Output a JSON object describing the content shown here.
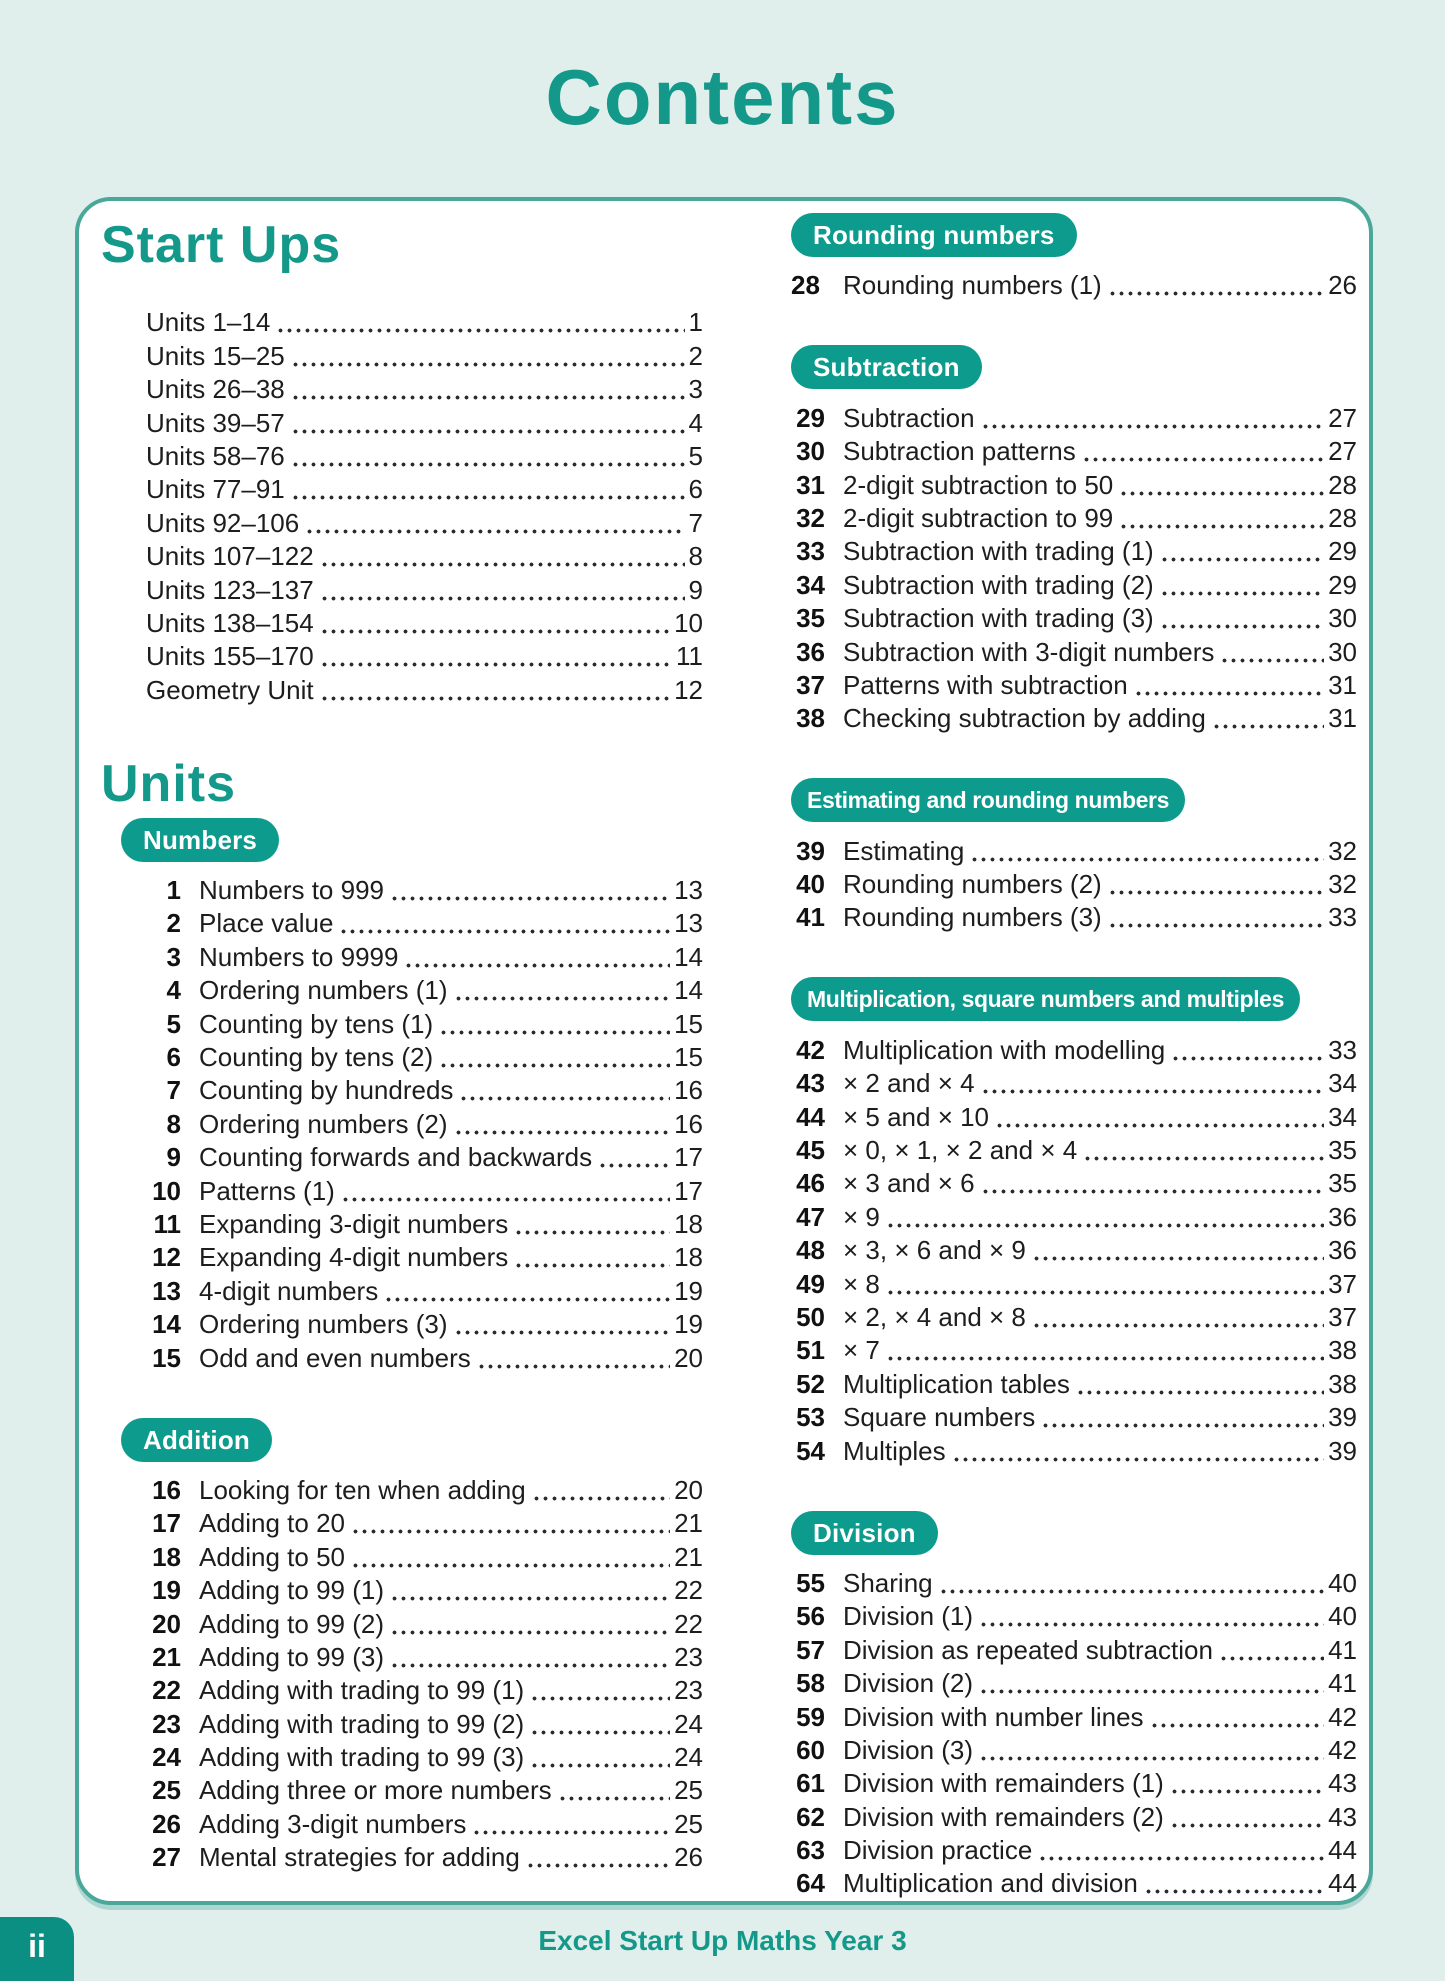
{
  "page": {
    "title": "Contents",
    "footer": {
      "page_label": "ii",
      "book_title": "Excel Start Up Maths Year 3"
    },
    "colors": {
      "accent_teal": "#14988a",
      "badge_teal": "#0c9b8c",
      "border_teal": "#4aa89a",
      "page_background": "#e0efeb",
      "body_text": "#1d1d1d"
    }
  },
  "left_column": {
    "start_ups": {
      "heading": "Start Ups",
      "entries": [
        {
          "title": "Units 1–14",
          "page": "1"
        },
        {
          "title": "Units 15–25",
          "page": "2"
        },
        {
          "title": "Units 26–38",
          "page": "3"
        },
        {
          "title": "Units 39–57",
          "page": "4"
        },
        {
          "title": "Units 58–76",
          "page": "5"
        },
        {
          "title": "Units 77–91",
          "page": "6"
        },
        {
          "title": "Units 92–106",
          "page": "7"
        },
        {
          "title": "Units 107–122",
          "page": "8"
        },
        {
          "title": "Units 123–137",
          "page": "9"
        },
        {
          "title": "Units 138–154",
          "page": "10"
        },
        {
          "title": "Units 155–170",
          "page": "11"
        },
        {
          "title": "Geometry Unit",
          "page": "12"
        }
      ]
    },
    "units_heading": "Units",
    "sections": [
      {
        "badge": "Numbers",
        "entries": [
          {
            "num": "1",
            "title": "Numbers to 999",
            "page": "13"
          },
          {
            "num": "2",
            "title": "Place value",
            "page": "13"
          },
          {
            "num": "3",
            "title": "Numbers to 9999",
            "page": "14"
          },
          {
            "num": "4",
            "title": "Ordering numbers (1)",
            "page": "14"
          },
          {
            "num": "5",
            "title": "Counting by tens (1)",
            "page": "15"
          },
          {
            "num": "6",
            "title": "Counting by tens (2)",
            "page": "15"
          },
          {
            "num": "7",
            "title": "Counting by hundreds",
            "page": "16"
          },
          {
            "num": "8",
            "title": "Ordering numbers (2)",
            "page": "16"
          },
          {
            "num": "9",
            "title": "Counting forwards and backwards",
            "page": "17"
          },
          {
            "num": "10",
            "title": "Patterns (1)",
            "page": "17"
          },
          {
            "num": "11",
            "title": "Expanding 3-digit numbers",
            "page": "18"
          },
          {
            "num": "12",
            "title": "Expanding 4-digit numbers",
            "page": "18"
          },
          {
            "num": "13",
            "title": "4-digit numbers",
            "page": "19"
          },
          {
            "num": "14",
            "title": "Ordering numbers (3)",
            "page": "19"
          },
          {
            "num": "15",
            "title": "Odd and even numbers",
            "page": "20"
          }
        ]
      },
      {
        "badge": "Addition",
        "entries": [
          {
            "num": "16",
            "title": "Looking for ten when adding",
            "page": "20"
          },
          {
            "num": "17",
            "title": "Adding to 20",
            "page": "21"
          },
          {
            "num": "18",
            "title": "Adding to 50",
            "page": "21"
          },
          {
            "num": "19",
            "title": "Adding to 99 (1)",
            "page": "22"
          },
          {
            "num": "20",
            "title": "Adding to 99 (2)",
            "page": "22"
          },
          {
            "num": "21",
            "title": "Adding to 99 (3)",
            "page": "23"
          },
          {
            "num": "22",
            "title": "Adding with trading to 99 (1)",
            "page": "23"
          },
          {
            "num": "23",
            "title": "Adding with trading to 99 (2)",
            "page": "24"
          },
          {
            "num": "24",
            "title": "Adding with trading to 99 (3)",
            "page": "24"
          },
          {
            "num": "25",
            "title": "Adding three or more numbers",
            "page": "25"
          },
          {
            "num": "26",
            "title": "Adding 3-digit numbers",
            "page": "25"
          },
          {
            "num": "27",
            "title": "Mental strategies for adding",
            "page": "26"
          }
        ]
      }
    ]
  },
  "right_column": {
    "sections": [
      {
        "badge": "Rounding numbers",
        "inline_num": true,
        "entries": [
          {
            "num": "28",
            "title": "Rounding numbers (1)",
            "page": "26"
          }
        ]
      },
      {
        "badge": "Subtraction",
        "entries": [
          {
            "num": "29",
            "title": "Subtraction",
            "page": "27"
          },
          {
            "num": "30",
            "title": "Subtraction patterns",
            "page": "27"
          },
          {
            "num": "31",
            "title": "2-digit subtraction to 50",
            "page": "28"
          },
          {
            "num": "32",
            "title": "2-digit subtraction to 99",
            "page": "28"
          },
          {
            "num": "33",
            "title": "Subtraction with trading (1)",
            "page": "29"
          },
          {
            "num": "34",
            "title": "Subtraction with trading (2)",
            "page": "29"
          },
          {
            "num": "35",
            "title": "Subtraction with trading (3)",
            "page": "30"
          },
          {
            "num": "36",
            "title": "Subtraction with 3-digit numbers",
            "page": "30"
          },
          {
            "num": "37",
            "title": "Patterns with subtraction",
            "page": "31"
          },
          {
            "num": "38",
            "title": "Checking subtraction by adding",
            "page": "31"
          }
        ]
      },
      {
        "badge": "Estimating and rounding numbers",
        "entries": [
          {
            "num": "39",
            "title": "Estimating",
            "page": "32"
          },
          {
            "num": "40",
            "title": "Rounding numbers (2)",
            "page": "32"
          },
          {
            "num": "41",
            "title": "Rounding numbers (3)",
            "page": "33"
          }
        ]
      },
      {
        "badge": "Multiplication, square numbers and multiples",
        "entries": [
          {
            "num": "42",
            "title": "Multiplication with modelling",
            "page": "33"
          },
          {
            "num": "43",
            "title": "× 2 and × 4",
            "page": "34"
          },
          {
            "num": "44",
            "title": "× 5 and × 10",
            "page": "34"
          },
          {
            "num": "45",
            "title": "× 0, × 1, × 2 and × 4",
            "page": "35"
          },
          {
            "num": "46",
            "title": "× 3 and × 6",
            "page": "35"
          },
          {
            "num": "47",
            "title": "× 9",
            "page": "36"
          },
          {
            "num": "48",
            "title": "× 3, × 6 and × 9",
            "page": "36"
          },
          {
            "num": "49",
            "title": "× 8",
            "page": "37"
          },
          {
            "num": "50",
            "title": "× 2, × 4 and × 8",
            "page": "37"
          },
          {
            "num": "51",
            "title": "× 7",
            "page": "38"
          },
          {
            "num": "52",
            "title": "Multiplication tables",
            "page": "38"
          },
          {
            "num": "53",
            "title": "Square numbers",
            "page": "39"
          },
          {
            "num": "54",
            "title": "Multiples",
            "page": "39"
          }
        ]
      },
      {
        "badge": "Division",
        "entries": [
          {
            "num": "55",
            "title": "Sharing",
            "page": "40"
          },
          {
            "num": "56",
            "title": "Division (1)",
            "page": "40"
          },
          {
            "num": "57",
            "title": "Division as repeated subtraction",
            "page": "41"
          },
          {
            "num": "58",
            "title": "Division (2)",
            "page": "41"
          },
          {
            "num": "59",
            "title": "Division with number lines",
            "page": "42"
          },
          {
            "num": "60",
            "title": "Division (3)",
            "page": "42"
          },
          {
            "num": "61",
            "title": "Division with remainders (1)",
            "page": "43"
          },
          {
            "num": "62",
            "title": "Division with remainders (2)",
            "page": "43"
          },
          {
            "num": "63",
            "title": "Division practice",
            "page": "44"
          },
          {
            "num": "64",
            "title": "Multiplication and division",
            "page": "44"
          }
        ]
      }
    ]
  }
}
